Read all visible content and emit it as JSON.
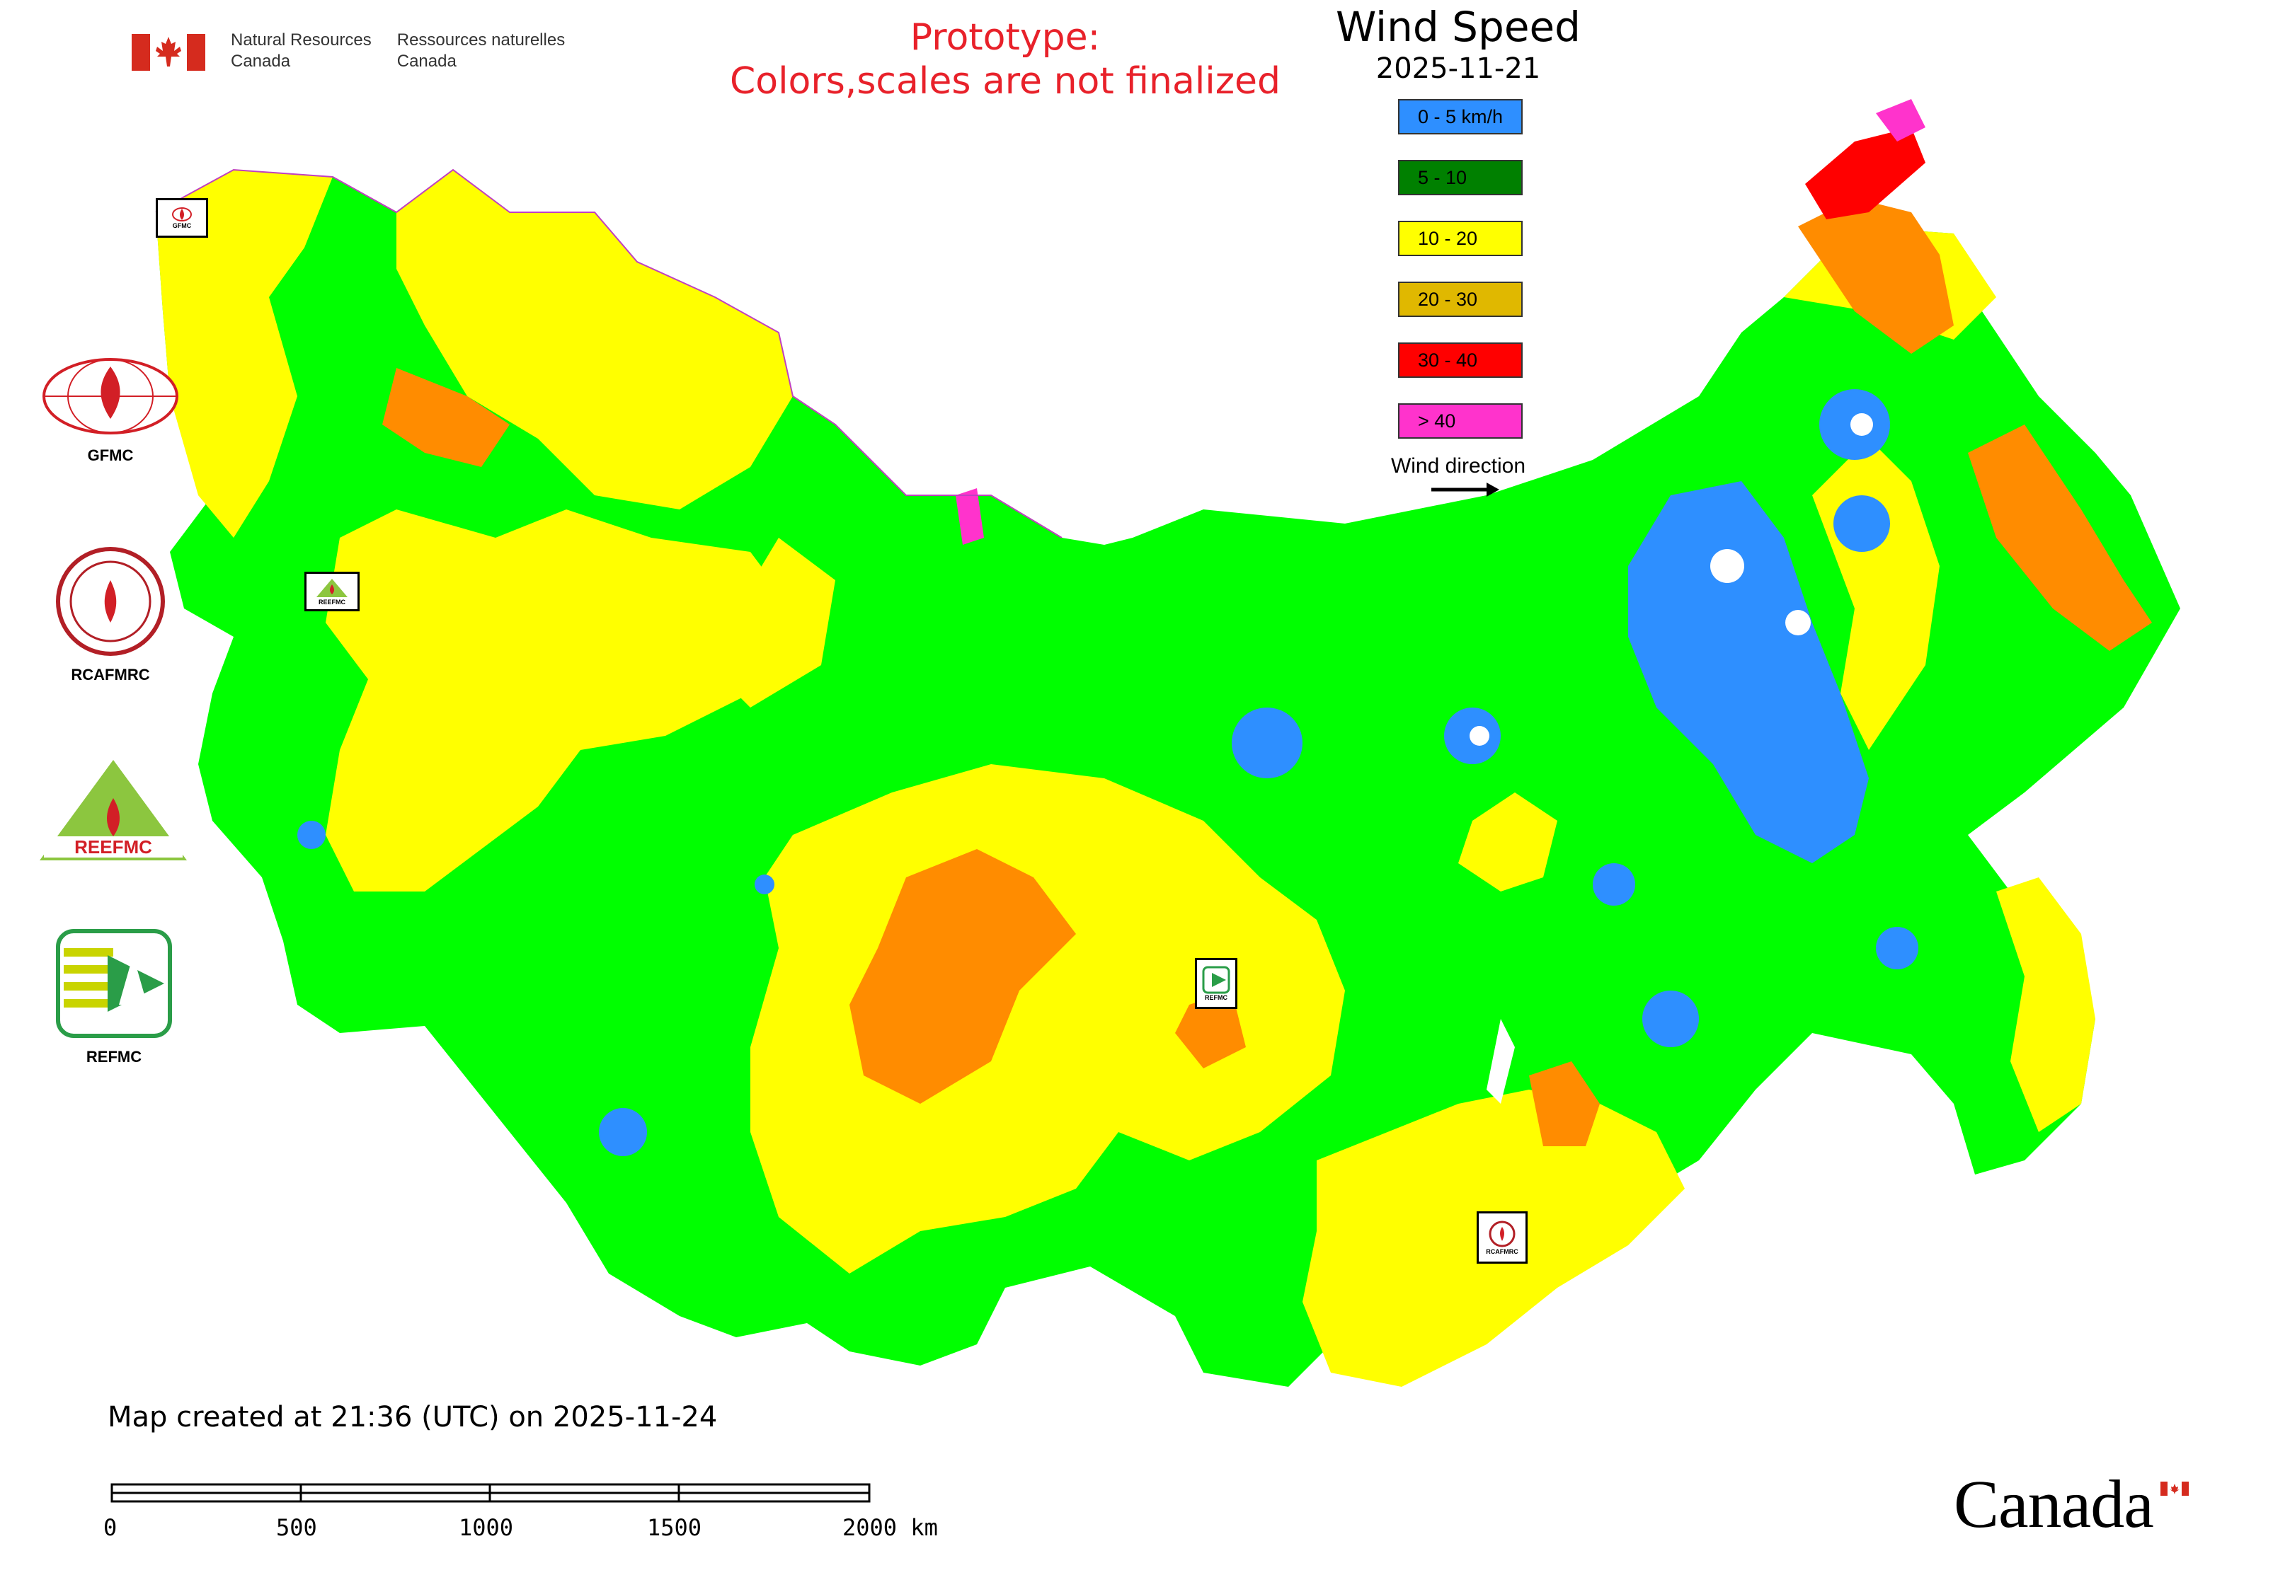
{
  "header": {
    "gov_en": [
      "Natural Resources",
      "Canada"
    ],
    "gov_fr": [
      "Ressources naturelles",
      "Canada"
    ],
    "notice_line1": "Prototype:",
    "notice_line2": "Colors,scales are not finalized"
  },
  "legend": {
    "title": "Wind Speed",
    "date": "2025-11-21",
    "classes": [
      {
        "label": "0 - 5 km/h",
        "color": "#2e8fff"
      },
      {
        "label": "5 - 10",
        "color": "#008000"
      },
      {
        "label": "10 - 20",
        "color": "#ffff00"
      },
      {
        "label": "20 - 30",
        "color": "#e0b800"
      },
      {
        "label": "30 - 40",
        "color": "#ff0000"
      },
      {
        "label": "> 40",
        "color": "#ff33cc"
      }
    ],
    "wind_direction_label": "Wind direction"
  },
  "map_colors": {
    "calm": "#2e8fff",
    "light": "#00ff00",
    "moderate": "#ffff00",
    "fresh": "#ff8c00",
    "strong": "#ff0000",
    "gale": "#ff33cc"
  },
  "institutions": [
    {
      "label": "GFMC",
      "icon": "gfmc-logo-icon"
    },
    {
      "label": "RCAFMRC",
      "icon": "rcafmrc-logo-icon"
    },
    {
      "label": "",
      "icon": "reefmc-logo-icon"
    },
    {
      "label": "REFMC",
      "icon": "refmc-logo-icon"
    }
  ],
  "markers": [
    {
      "label": "GFMC"
    },
    {
      "label": "REEFMC"
    },
    {
      "label": "REFMC"
    },
    {
      "label": "RCAFMRC"
    }
  ],
  "footer": {
    "created": "Map created at 21:36 (UTC) on 2025-11-24",
    "scale_labels": [
      "0",
      "500",
      "1000",
      "1500",
      "2000 km"
    ],
    "wordmark": "Canada"
  }
}
